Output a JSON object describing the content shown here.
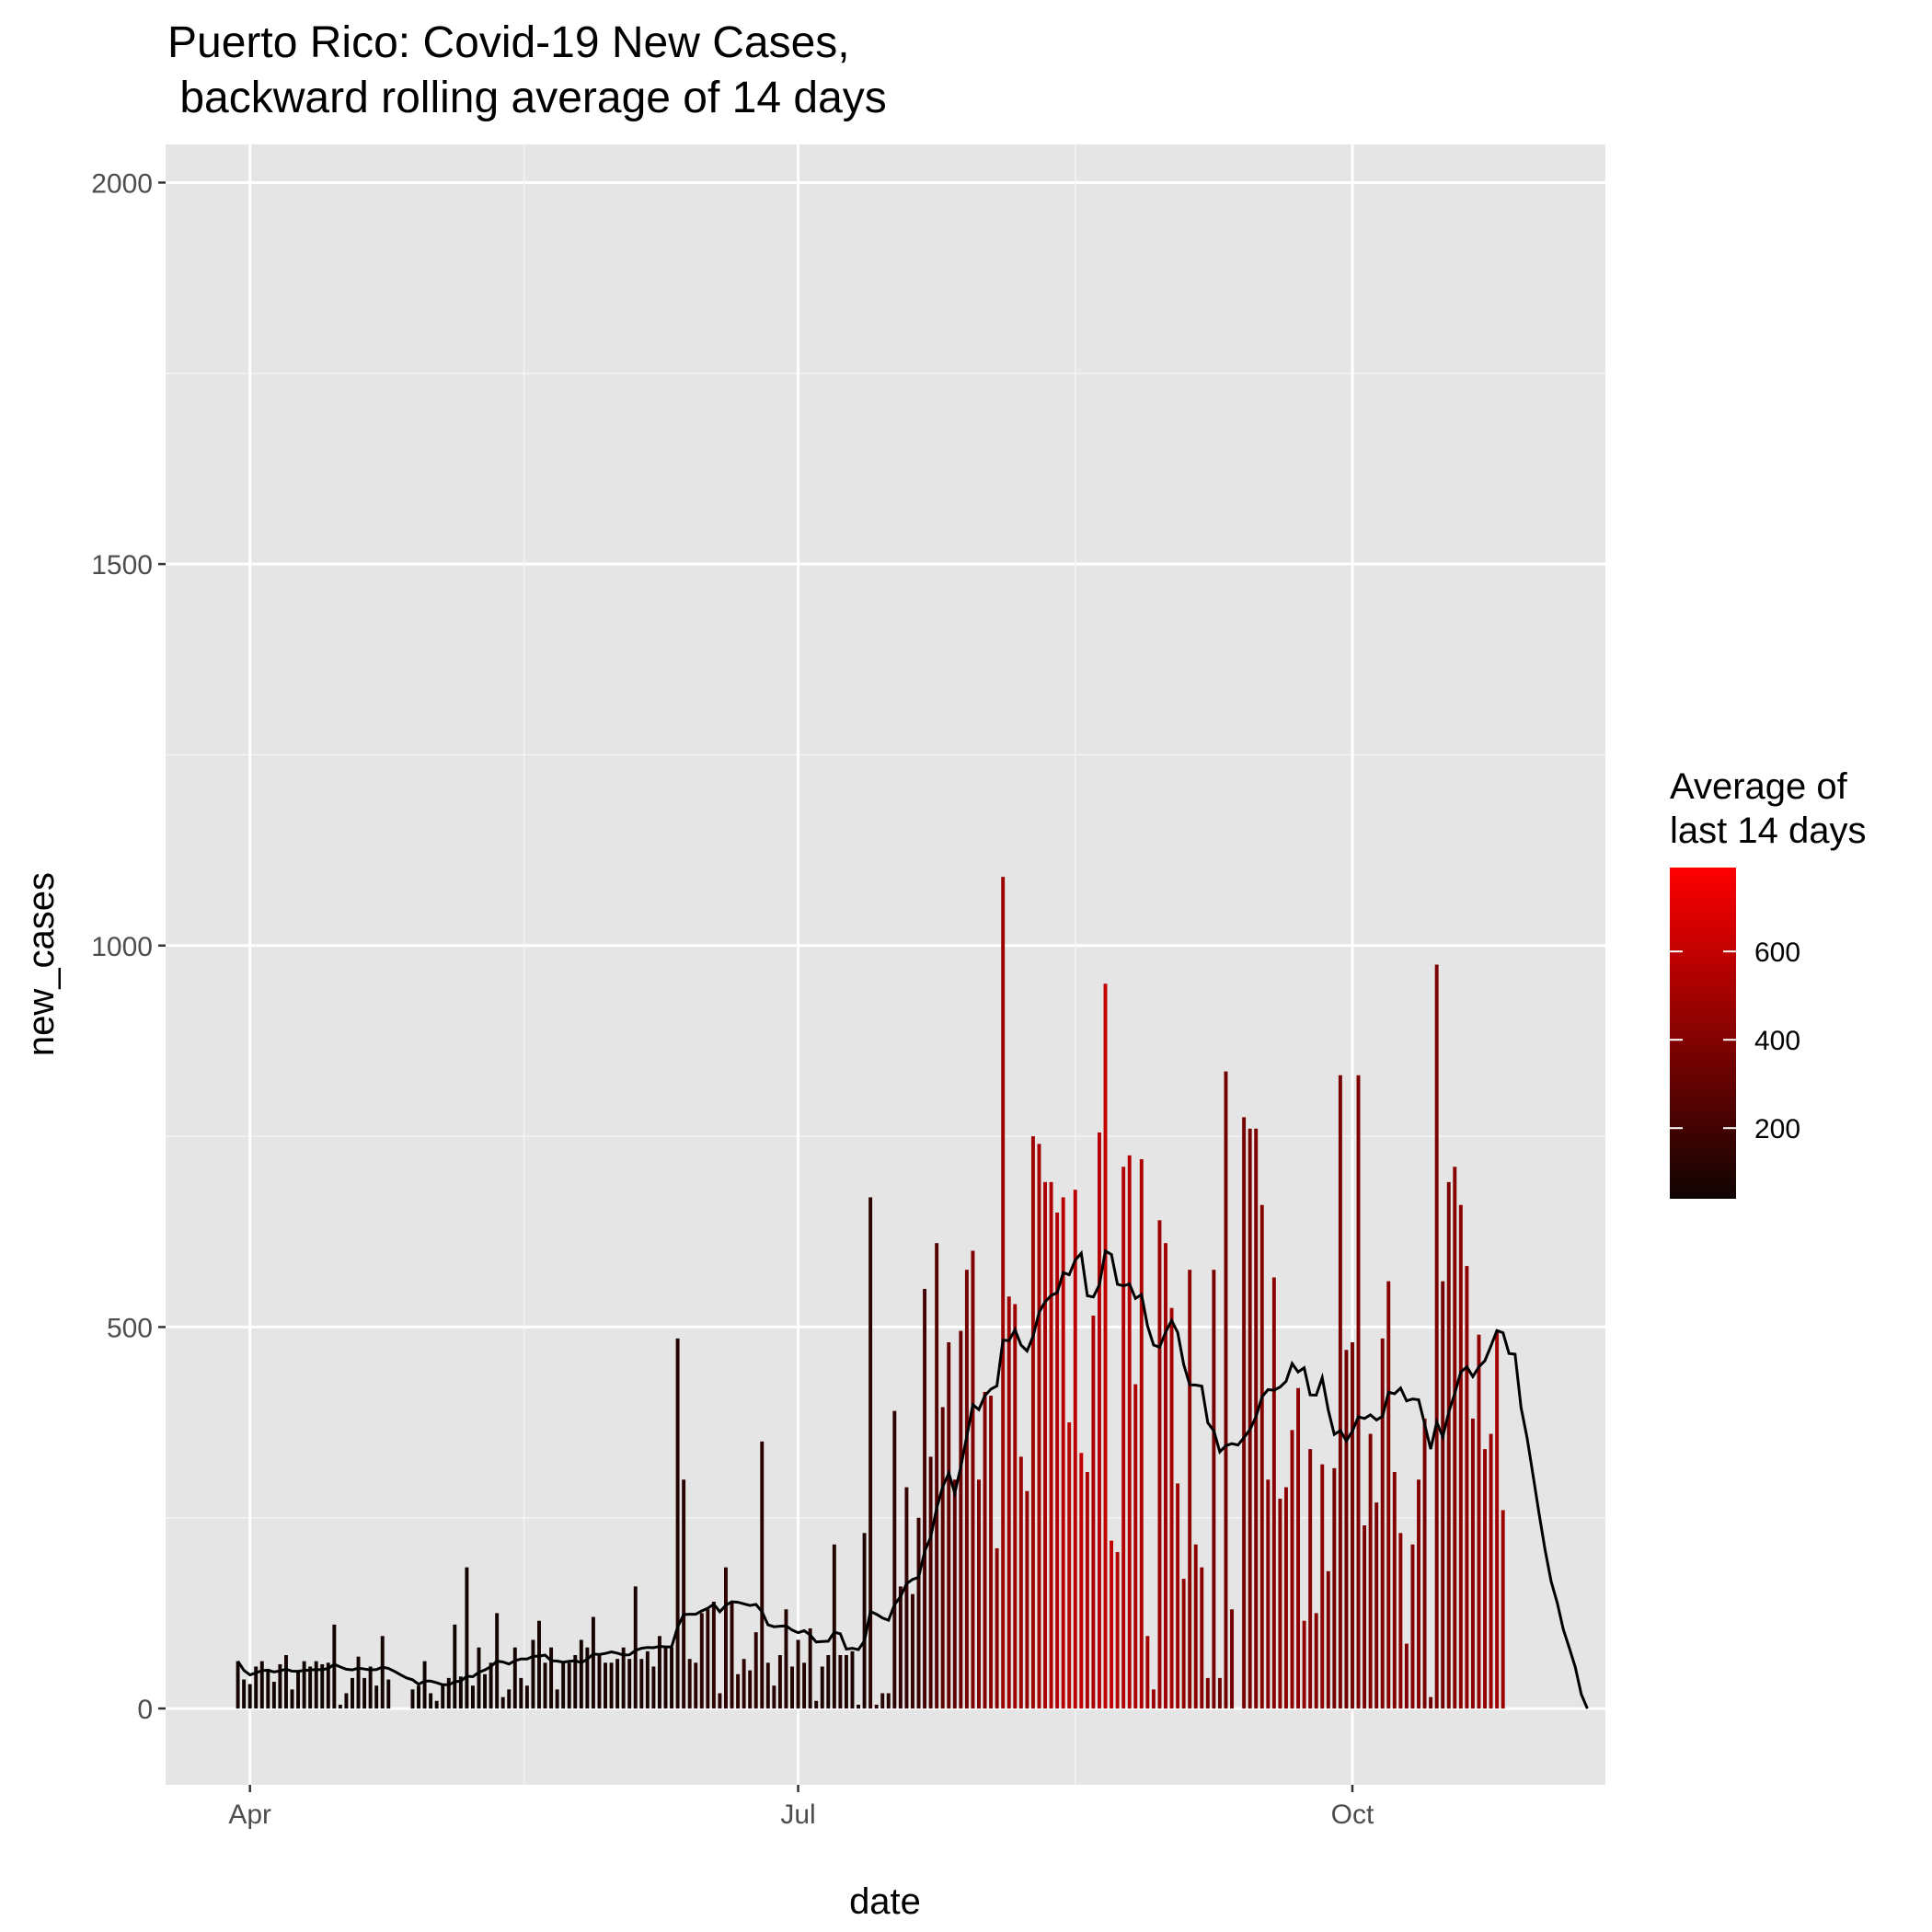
{
  "chart_data": {
    "type": "bar",
    "title": "Puerto Rico: Covid-19 New Cases,",
    "subtitle": " backward rolling average of 14 days",
    "xlabel": "date",
    "ylabel": "new_cases",
    "x_ticks": [
      "Apr",
      "Jul",
      "Oct"
    ],
    "x_tick_dates": [
      "2020-04-01",
      "2020-07-01",
      "2020-10-01"
    ],
    "y_ticks": [
      0,
      500,
      1000,
      1500,
      2000
    ],
    "ylim": [
      -100,
      2050
    ],
    "xlim": [
      "2020-03-18",
      "2020-11-12"
    ],
    "grid": true,
    "legend": {
      "title_line1": "Average of",
      "title_line2": "last 14 days",
      "position": "right",
      "ticks": [
        200,
        400,
        600
      ],
      "range": [
        40,
        790
      ],
      "colors": [
        "#0f0402",
        "#ff0000"
      ]
    },
    "dates_start": "2020-03-30",
    "dates_end": "2020-11-09",
    "series": [
      {
        "name": "new_cases",
        "values": [
          62,
          38,
          32,
          55,
          62,
          52,
          35,
          58,
          70,
          25,
          48,
          62,
          55,
          62,
          58,
          60,
          110,
          5,
          20,
          40,
          68,
          40,
          55,
          30,
          95,
          38,
          0,
          0,
          0,
          25,
          30,
          62,
          20,
          10,
          30,
          40,
          110,
          42,
          185,
          30,
          80,
          45,
          60,
          125,
          15,
          25,
          80,
          40,
          30,
          90,
          115,
          60,
          80,
          25,
          60,
          60,
          70,
          90,
          80,
          120,
          70,
          60,
          60,
          65,
          80,
          65,
          160,
          65,
          75,
          55,
          95,
          80,
          80,
          485,
          300,
          65,
          60,
          125,
          130,
          140,
          20,
          185,
          140,
          45,
          65,
          50,
          100,
          350,
          60,
          30,
          70,
          130,
          55,
          90,
          60,
          105,
          10,
          55,
          70,
          215,
          70,
          70,
          75,
          5,
          230,
          670,
          5,
          20,
          20,
          390,
          160,
          290,
          150,
          250,
          550,
          330,
          610,
          395,
          480,
          300,
          495,
          575,
          600,
          300,
          415,
          410,
          210,
          1090,
          540,
          530,
          330,
          285,
          750,
          740,
          690,
          690,
          650,
          670,
          375,
          680,
          335,
          310,
          515,
          755,
          950,
          220,
          205,
          710,
          725,
          425,
          720,
          95,
          25,
          640,
          610,
          525,
          295,
          170,
          575,
          215,
          185,
          40,
          575,
          40,
          835,
          130,
          0,
          775,
          760,
          760,
          660,
          300,
          565,
          275,
          290,
          365,
          420,
          115,
          340,
          125,
          320,
          180,
          315,
          830,
          470,
          480,
          830,
          240,
          360,
          270,
          485,
          560,
          310,
          230,
          85,
          215,
          300,
          380,
          15,
          975,
          560,
          690,
          710,
          660,
          580,
          380,
          490,
          340,
          360,
          495,
          260,
          0,
          0,
          0,
          0,
          0,
          0,
          0,
          0,
          0,
          0,
          0,
          0,
          0,
          0,
          0,
          0,
          0,
          0,
          0,
          0,
          0,
          0,
          0,
          0,
          0,
          0,
          0,
          0,
          0,
          0,
          0,
          0,
          0,
          0,
          0,
          0,
          0,
          0
        ]
      },
      {
        "name": "rolling_avg",
        "values": []
      }
    ]
  }
}
